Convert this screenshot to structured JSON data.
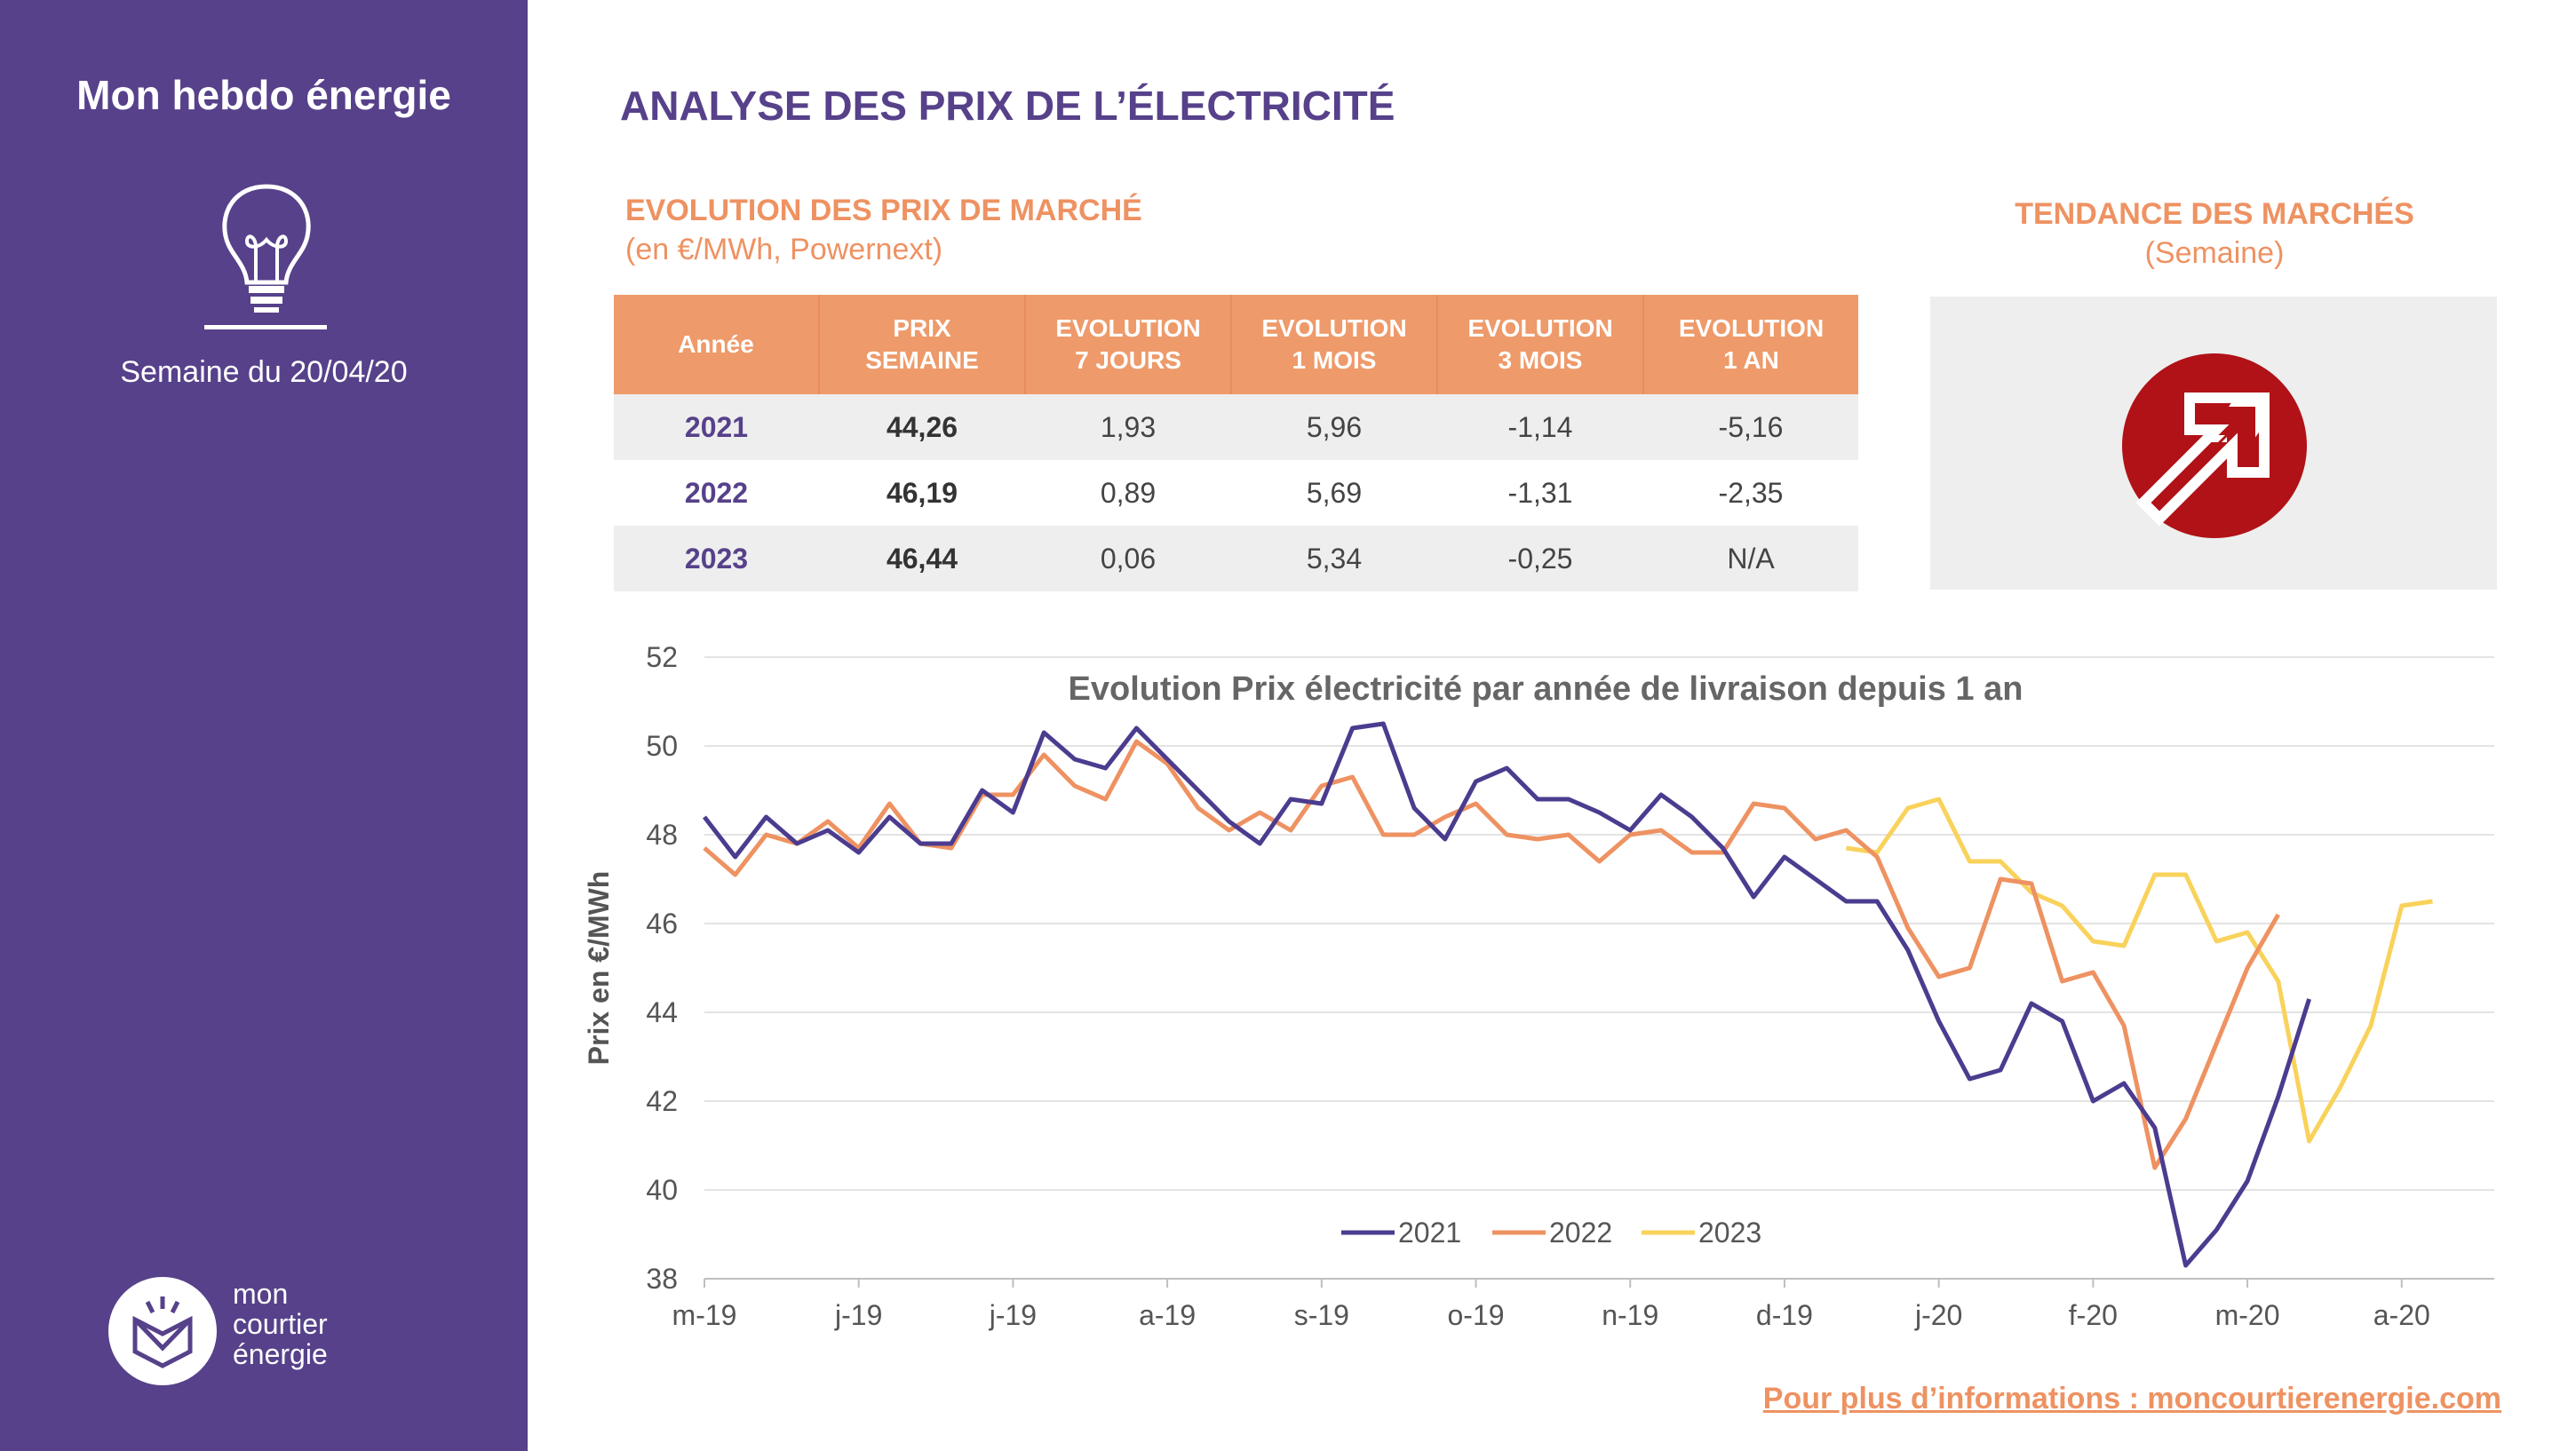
{
  "sidebar": {
    "title": "Mon hebdo énergie",
    "week": "Semaine du 20/04/20",
    "logo": [
      "mon",
      "courtier",
      "énergie"
    ]
  },
  "header": {
    "title": "ANALYSE DES PRIX DE L’ÉLECTRICITÉ"
  },
  "market": {
    "title": "EVOLUTION DES PRIX DE MARCHÉ",
    "subtitle": "(en €/MWh, Powernext)",
    "columns": [
      "Année",
      "PRIX\nSEMAINE",
      "EVOLUTION\n7 JOURS",
      "EVOLUTION\n1 MOIS",
      "EVOLUTION\n3 MOIS",
      "EVOLUTION\n1 AN"
    ],
    "rows": [
      [
        "2021",
        "44,26",
        "1,93",
        "5,96",
        "-1,14",
        "-5,16"
      ],
      [
        "2022",
        "46,19",
        "0,89",
        "5,69",
        "-1,31",
        "-2,35"
      ],
      [
        "2023",
        "46,44",
        "0,06",
        "5,34",
        "-0,25",
        "N/A"
      ]
    ]
  },
  "trend": {
    "title": "TENDANCE DES MARCHÉS",
    "subtitle": "(Semaine)",
    "icon": "up-right-arrow-icon",
    "direction": "up",
    "color": "#b01217"
  },
  "footer": {
    "link": "Pour plus d’informations : moncourtierenergie.com"
  },
  "colors": {
    "purple": "#56418a",
    "orange": "#ee9262",
    "yellow": "#f9d25b"
  },
  "chart_data": {
    "type": "line",
    "title": "Evolution Prix électricité par année de livraison depuis 1 an",
    "ylabel": "Prix en €/MWh",
    "xlabel": "",
    "ylim": [
      38,
      52
    ],
    "yticks": [
      38,
      40,
      42,
      44,
      46,
      48,
      50,
      52
    ],
    "grid": true,
    "legend": "bottom-center",
    "xticks": [
      {
        "i": 0,
        "label": "m-19"
      },
      {
        "i": 5,
        "label": "j-19"
      },
      {
        "i": 10,
        "label": "j-19"
      },
      {
        "i": 15,
        "label": "a-19"
      },
      {
        "i": 20,
        "label": "s-19"
      },
      {
        "i": 25,
        "label": "o-19"
      },
      {
        "i": 30,
        "label": "n-19"
      },
      {
        "i": 35,
        "label": "d-19"
      },
      {
        "i": 40,
        "label": "j-20"
      },
      {
        "i": 45,
        "label": "f-20"
      },
      {
        "i": 50,
        "label": "m-20"
      },
      {
        "i": 55,
        "label": "a-20"
      }
    ],
    "n_points": 59,
    "series": [
      {
        "name": "2021",
        "color": "#4b3c8f",
        "start": 0,
        "values": [
          48.4,
          47.5,
          48.4,
          47.8,
          48.1,
          47.6,
          48.4,
          47.8,
          47.8,
          49.0,
          48.5,
          50.3,
          49.7,
          49.5,
          50.4,
          49.7,
          49.0,
          48.3,
          47.8,
          48.8,
          48.7,
          50.4,
          50.5,
          48.6,
          47.9,
          49.2,
          49.5,
          48.8,
          48.8,
          48.5,
          48.1,
          48.9,
          48.4,
          47.7,
          46.6,
          47.5,
          47.0,
          46.5,
          46.5,
          45.4,
          43.8,
          42.5,
          42.7,
          44.2,
          43.8,
          42.0,
          42.4,
          41.4,
          38.3,
          39.1,
          40.2,
          42.1,
          44.3
        ]
      },
      {
        "name": "2022",
        "color": "#ee9262",
        "start": 0,
        "values": [
          47.7,
          47.1,
          48.0,
          47.8,
          48.3,
          47.7,
          48.7,
          47.8,
          47.7,
          48.9,
          48.9,
          49.8,
          49.1,
          48.8,
          50.1,
          49.6,
          48.6,
          48.1,
          48.5,
          48.1,
          49.1,
          49.3,
          48.0,
          48.0,
          48.4,
          48.7,
          48.0,
          47.9,
          48.0,
          47.4,
          48.0,
          48.1,
          47.6,
          47.6,
          48.7,
          48.6,
          47.9,
          48.1,
          47.5,
          45.9,
          44.8,
          45.0,
          47.0,
          46.9,
          44.7,
          44.9,
          43.7,
          40.5,
          41.6,
          43.3,
          45.0,
          46.2
        ],
        "offset": 1
      },
      {
        "name": "2023",
        "color": "#f9d25b",
        "start": 37,
        "values": [
          47.7,
          47.6,
          48.6,
          48.8,
          47.4,
          47.4,
          46.7,
          46.4,
          45.6,
          45.5,
          47.1,
          47.1,
          45.6,
          45.8,
          44.7,
          41.1,
          42.3,
          43.7,
          46.4,
          46.5
        ]
      }
    ]
  }
}
